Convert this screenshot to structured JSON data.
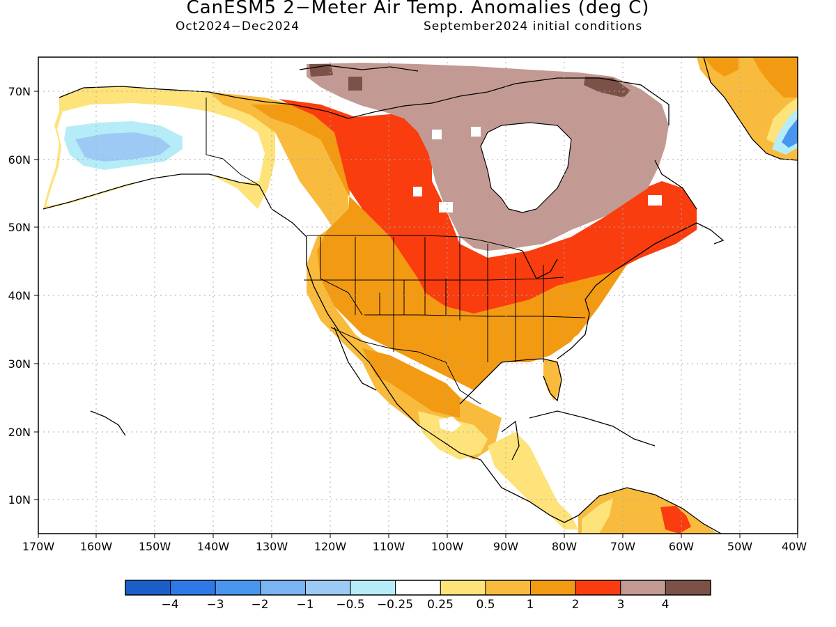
{
  "header": {
    "title": "CanESM5 2-Meter Air Temp. Anomalies (deg C)",
    "period": "Oct2024-Dec2024",
    "initial_conditions": "September2024 initial conditions"
  },
  "map": {
    "lat_labels": [
      "70N",
      "60N",
      "50N",
      "40N",
      "30N",
      "20N",
      "10N"
    ],
    "lon_labels": [
      "170W",
      "160W",
      "150W",
      "140W",
      "130W",
      "120W",
      "110W",
      "100W",
      "90W",
      "80W",
      "70W",
      "60W",
      "50W",
      "40W"
    ]
  },
  "colorbar": {
    "colors": [
      "#1a5fc8",
      "#2e78e8",
      "#4896ee",
      "#7ab4f2",
      "#9ccaf5",
      "#b6ecf7",
      "#ffffff",
      "#fde37a",
      "#f8bb3d",
      "#f39a13",
      "#f93d0e",
      "#c39a93",
      "#7c5148"
    ],
    "labels": [
      "-4",
      "-3",
      "-2",
      "-1",
      "-0.5",
      "-0.25",
      "0.25",
      "0.5",
      "1",
      "2",
      "3",
      "4"
    ]
  },
  "colors": {
    "ocean": "#ffffff",
    "grid": "#aaaaaa",
    "coast": "#000000"
  }
}
